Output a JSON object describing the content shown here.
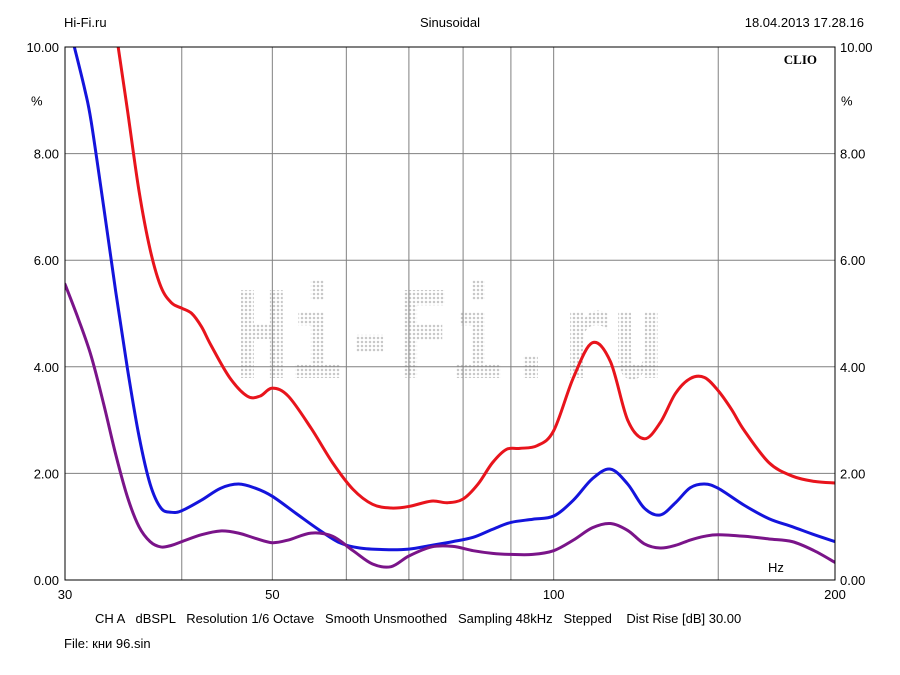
{
  "header": {
    "left": "Hi-Fi.ru",
    "center": "Sinusoidal",
    "right": "18.04.2013 17.28.16"
  },
  "footer": {
    "settings": "CH A   dBSPL   Resolution 1/6 Octave   Smooth Unsmoothed   Sampling 48kHz   Stepped    Dist Rise [dB] 30.00",
    "file": "File: кни 96.sin"
  },
  "brand": "CLIO",
  "watermark": "Hi-Fi.ru",
  "colors": {
    "background": "#ffffff",
    "grid": "#808080",
    "red": "#e8141c",
    "blue": "#1414dc",
    "purple": "#7a1489",
    "watermark": "#c8c8c8"
  },
  "chart_data": {
    "type": "line",
    "xscale": "log",
    "xlim": [
      30,
      200
    ],
    "ylim": [
      0,
      10
    ],
    "x_ticks": [
      {
        "value": 30,
        "label": "30"
      },
      {
        "value": 50,
        "label": "50"
      },
      {
        "value": 100,
        "label": "100"
      },
      {
        "value": 200,
        "label": "200"
      }
    ],
    "x_unit_label": "Hz",
    "x_grid": [
      40,
      50,
      60,
      70,
      80,
      90,
      100,
      150
    ],
    "y_ticks": [
      {
        "value": 0,
        "label": "0.00"
      },
      {
        "value": 2,
        "label": "2.00"
      },
      {
        "value": 4,
        "label": "4.00"
      },
      {
        "value": 6,
        "label": "6.00"
      },
      {
        "value": 8,
        "label": "8.00"
      },
      {
        "value": 10,
        "label": "10.00"
      }
    ],
    "y_unit_label": "%",
    "grid": true,
    "series": [
      {
        "color": "red",
        "x": [
          34.2,
          35,
          36,
          37,
          38,
          39,
          40,
          41,
          42,
          43,
          45,
          47,
          48.5,
          50,
          52,
          55,
          58,
          61,
          64,
          67,
          70,
          74,
          77,
          80,
          83,
          86,
          89,
          92,
          96,
          100,
          105,
          110,
          115,
          120,
          125,
          130,
          135,
          140,
          145,
          150,
          155,
          160,
          170,
          180,
          190,
          200
        ],
        "y": [
          10.0,
          8.8,
          7.3,
          6.2,
          5.5,
          5.2,
          5.1,
          5.0,
          4.75,
          4.4,
          3.8,
          3.45,
          3.45,
          3.6,
          3.45,
          2.85,
          2.2,
          1.7,
          1.42,
          1.35,
          1.38,
          1.48,
          1.45,
          1.52,
          1.8,
          2.2,
          2.45,
          2.47,
          2.52,
          2.8,
          3.8,
          4.45,
          4.1,
          3.0,
          2.65,
          2.95,
          3.5,
          3.78,
          3.8,
          3.55,
          3.2,
          2.8,
          2.2,
          1.95,
          1.85,
          1.82
        ]
      },
      {
        "color": "blue",
        "x": [
          30.7,
          31.5,
          32,
          33,
          34,
          35,
          36,
          37,
          38,
          39,
          40,
          42,
          44,
          46,
          48,
          50,
          53,
          56,
          59,
          62,
          66,
          70,
          74,
          78,
          82,
          86,
          90,
          95,
          100,
          105,
          110,
          115,
          120,
          125,
          130,
          135,
          140,
          145,
          150,
          160,
          170,
          180,
          190,
          200
        ],
        "y": [
          10.0,
          9.2,
          8.6,
          7.0,
          5.4,
          3.95,
          2.7,
          1.8,
          1.35,
          1.27,
          1.3,
          1.5,
          1.72,
          1.8,
          1.72,
          1.57,
          1.25,
          0.95,
          0.7,
          0.6,
          0.57,
          0.58,
          0.65,
          0.72,
          0.8,
          0.95,
          1.08,
          1.14,
          1.2,
          1.5,
          1.9,
          2.08,
          1.8,
          1.35,
          1.22,
          1.45,
          1.73,
          1.8,
          1.72,
          1.4,
          1.15,
          1.0,
          0.85,
          0.72
        ]
      },
      {
        "color": "purple",
        "x": [
          30,
          31,
          32,
          33,
          34,
          35,
          36,
          37,
          38,
          39,
          40,
          42,
          44,
          46,
          48,
          50,
          52,
          55,
          58,
          61,
          64,
          67,
          70,
          74,
          78,
          82,
          86,
          90,
          95,
          100,
          105,
          110,
          115,
          120,
          125,
          130,
          135,
          140,
          145,
          150,
          160,
          170,
          180,
          190,
          200
        ],
        "y": [
          5.55,
          4.9,
          4.2,
          3.3,
          2.35,
          1.55,
          1.0,
          0.72,
          0.62,
          0.65,
          0.72,
          0.85,
          0.92,
          0.88,
          0.78,
          0.7,
          0.75,
          0.88,
          0.82,
          0.55,
          0.3,
          0.25,
          0.45,
          0.62,
          0.63,
          0.55,
          0.5,
          0.48,
          0.48,
          0.55,
          0.75,
          0.98,
          1.06,
          0.93,
          0.68,
          0.6,
          0.65,
          0.75,
          0.82,
          0.85,
          0.82,
          0.77,
          0.72,
          0.55,
          0.33
        ]
      }
    ]
  }
}
